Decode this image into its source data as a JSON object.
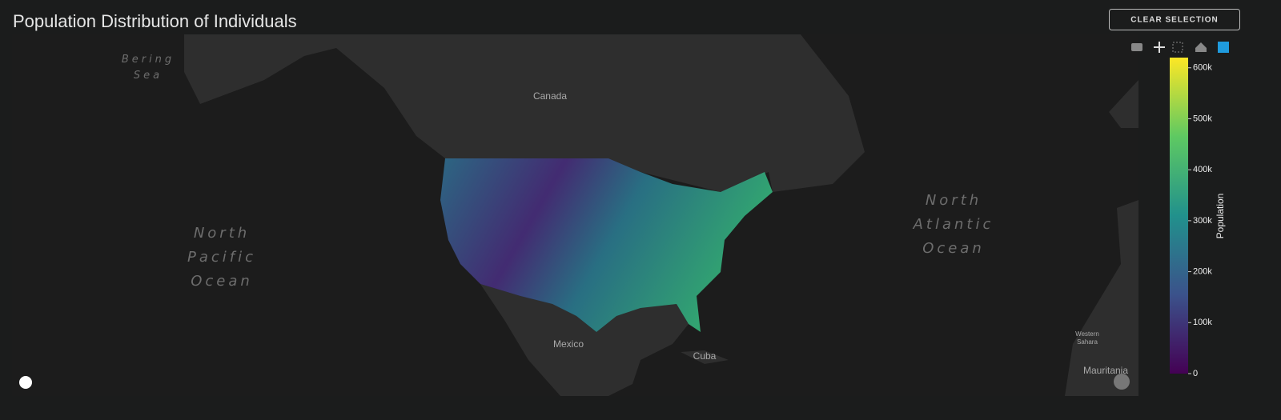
{
  "header": {
    "title": "Population Distribution of Individuals",
    "button": "CLEAR SELECTION"
  },
  "map": {
    "labels": {
      "bering_sea": [
        "Bering",
        "Sea"
      ],
      "north_pacific_ocean": [
        "North",
        "Pacific",
        "Ocean"
      ],
      "canada": "Canada",
      "north_atlantic_ocean": [
        "North",
        "Atlantic",
        "Ocean"
      ],
      "mexico": "Mexico",
      "cuba": "Cuba",
      "western_sahara": [
        "Western",
        "Sahara"
      ],
      "mauritania": "Mauritania"
    }
  },
  "colorbar": {
    "title": "Population",
    "clim": [
      0,
      620000
    ],
    "ticks": [
      0,
      {
        "value": 100000,
        "label": "100k"
      },
      {
        "value": 200000,
        "label": "200k"
      },
      {
        "value": 300000,
        "label": "300k"
      },
      {
        "value": 400000,
        "label": "400k"
      },
      {
        "value": 500000,
        "label": "500k"
      },
      {
        "value": 600000,
        "label": "600k"
      }
    ],
    "colors": [
      "#440154",
      "#3b528b",
      "#21918c",
      "#5ec962",
      "#fde725"
    ]
  }
}
